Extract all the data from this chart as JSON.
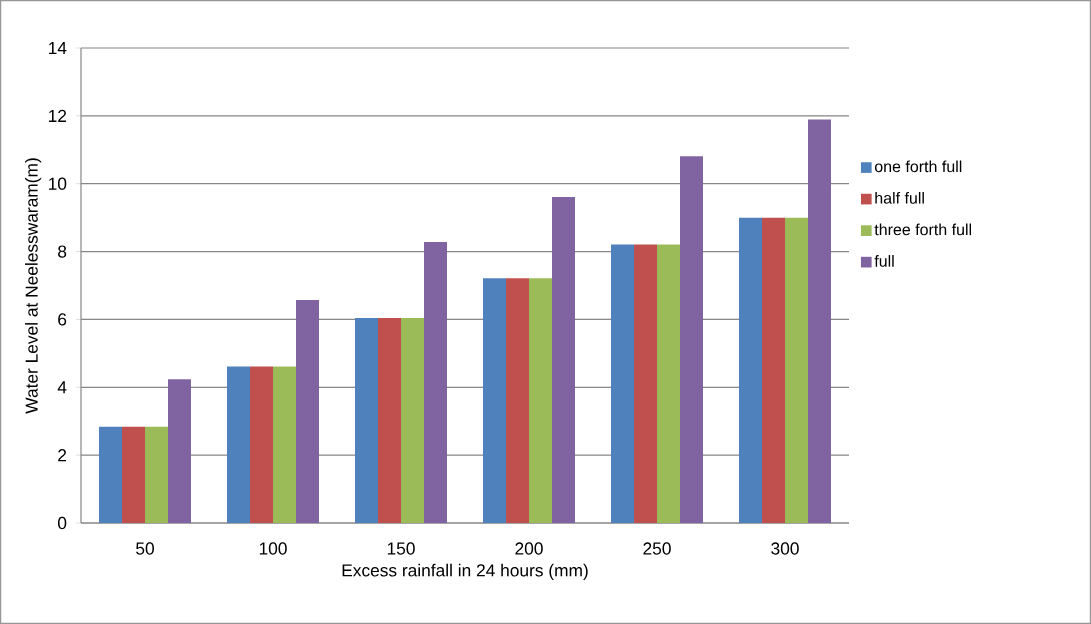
{
  "chart_data": {
    "type": "bar",
    "xlabel": "Excess rainfall in 24 hours (mm)",
    "ylabel": "Water Level at Neelesswaram(m)",
    "categories": [
      "50",
      "100",
      "150",
      "200",
      "250",
      "300"
    ],
    "series": [
      {
        "name": "one forth full",
        "color": "#4f81bd",
        "values": [
          2.84,
          4.61,
          6.04,
          7.21,
          8.21,
          9.0
        ]
      },
      {
        "name": "half full",
        "color": "#c0504d",
        "values": [
          2.84,
          4.61,
          6.04,
          7.21,
          8.21,
          9.0
        ]
      },
      {
        "name": "three forth full",
        "color": "#9bbb59",
        "values": [
          2.84,
          4.61,
          6.04,
          7.21,
          8.21,
          9.0
        ]
      },
      {
        "name": "full",
        "color": "#8064a2",
        "values": [
          4.24,
          6.57,
          8.28,
          9.61,
          10.81,
          11.89
        ]
      }
    ],
    "ylim": [
      0,
      14
    ],
    "yticks": [
      0,
      2,
      4,
      6,
      8,
      10,
      12,
      14
    ],
    "grid": "y",
    "legend": "right"
  }
}
